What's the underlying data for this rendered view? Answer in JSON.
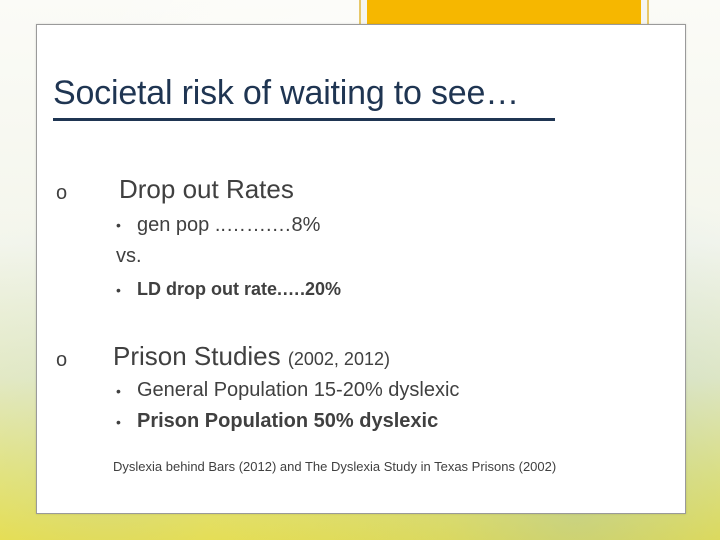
{
  "slide": {
    "title": "Societal risk of waiting to see…",
    "sections": [
      {
        "bullet": "o",
        "heading": "Drop out Rates",
        "items": [
          {
            "bullet": "•",
            "text": "gen pop ..…….…8%"
          }
        ],
        "separator": "vs.",
        "items_after": [
          {
            "bullet": "•",
            "text": "LD drop out rate.….20%"
          }
        ]
      },
      {
        "bullet": "o",
        "heading": "Prison Studies",
        "heading_suffix": "(2002, 2012)",
        "items": [
          {
            "bullet": "•",
            "text": "General Population 15-20% dyslexic"
          },
          {
            "bullet": "•",
            "text": "Prison Population 50% dyslexic"
          }
        ]
      }
    ],
    "citation": "Dyslexia behind Bars (2012) and The Dyslexia Study in Texas Prisons (2002)"
  },
  "colors": {
    "title": "#1f3552",
    "body_text": "#404040",
    "accent_orange": "#f6b700",
    "accent_border": "#e7c86a",
    "card_border": "#9a9a9a"
  }
}
